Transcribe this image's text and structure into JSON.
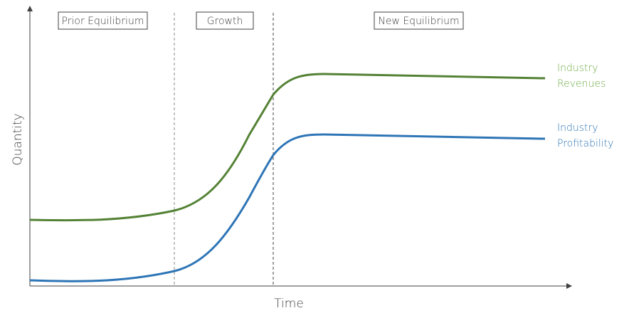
{
  "phases": [
    "Prior Equilibrium",
    "Growth",
    "New Equilibrium"
  ],
  "axes": {
    "y_label": "Quantity",
    "x_label": "Time"
  },
  "curves": [
    {
      "lines": [
        "Industry",
        "Revenues"
      ]
    },
    {
      "lines": [
        "Industry",
        "Profitability"
      ]
    }
  ]
}
